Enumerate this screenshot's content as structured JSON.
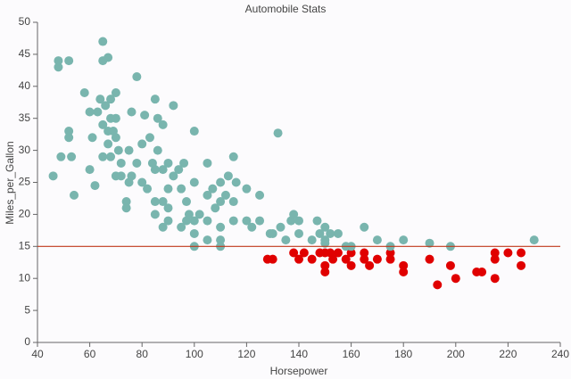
{
  "chart_data": {
    "type": "scatter",
    "title": "Automobile Stats",
    "x_label": "Horsepower",
    "y_label": "Miles_per_Gallon",
    "xlim": [
      40,
      240
    ],
    "xticks": [
      40,
      60,
      80,
      100,
      120,
      140,
      160,
      180,
      200,
      220,
      240
    ],
    "ylim": [
      0,
      50
    ],
    "yticks": [
      0,
      5,
      10,
      15,
      20,
      25,
      30,
      35,
      40,
      45,
      50
    ],
    "grid": false,
    "color": "#79b5ae",
    "below_color": "#e00000",
    "reference_line": {
      "value": 15,
      "color": "#c0391b"
    },
    "x": [
      128,
      130,
      138,
      140,
      142,
      145,
      148,
      150,
      150,
      150,
      152,
      153,
      155,
      158,
      160,
      160,
      165,
      165,
      167,
      170,
      175,
      175,
      180,
      180,
      190,
      193,
      198,
      200,
      208,
      210,
      215,
      215,
      215,
      220,
      225,
      225,
      46,
      48,
      48,
      49,
      52,
      52,
      52,
      53,
      54,
      58,
      60,
      60,
      61,
      62,
      63,
      64,
      65,
      65,
      65,
      65,
      66,
      67,
      67,
      67,
      68,
      68,
      68,
      69,
      70,
      70,
      70,
      70,
      71,
      72,
      72,
      74,
      74,
      75,
      75,
      76,
      76,
      78,
      78,
      80,
      80,
      81,
      82,
      83,
      84,
      85,
      85,
      85,
      85,
      86,
      86,
      88,
      88,
      88,
      88,
      90,
      90,
      90,
      90,
      92,
      92,
      94,
      95,
      95,
      96,
      97,
      97,
      98,
      100,
      100,
      100,
      100,
      100,
      102,
      105,
      105,
      105,
      105,
      107,
      108,
      110,
      110,
      110,
      110,
      110,
      112,
      113,
      115,
      115,
      115,
      116,
      120,
      120,
      122,
      125,
      125,
      129,
      130,
      132,
      133,
      135,
      137,
      138,
      140,
      140,
      145,
      147,
      148,
      150,
      150,
      150,
      152,
      155,
      158,
      160,
      165,
      170,
      175,
      180,
      190,
      198,
      230
    ],
    "values": [
      13,
      13,
      14,
      13,
      14,
      13,
      14,
      14,
      11,
      12,
      14,
      13,
      14,
      13,
      14,
      12,
      14,
      13,
      12,
      13,
      14,
      13,
      12,
      11,
      13,
      9,
      12,
      10,
      11,
      11,
      14,
      13,
      10,
      14,
      14,
      12,
      26,
      43,
      44,
      29,
      44,
      33,
      32,
      29,
      23,
      39,
      36,
      27,
      32,
      24.5,
      36,
      38,
      47,
      44,
      34,
      29,
      37,
      44.5,
      31,
      33,
      35,
      29,
      38,
      33,
      32,
      35,
      39,
      26,
      30,
      26,
      28,
      22,
      21,
      30,
      25,
      36,
      26,
      41.5,
      28,
      25,
      31,
      35.5,
      24,
      32,
      28,
      38,
      27,
      22,
      20,
      35,
      30,
      34,
      27,
      22,
      18,
      28,
      24,
      21,
      19,
      37,
      26,
      27,
      24,
      18,
      28,
      22,
      19,
      20,
      33,
      25,
      19,
      17,
      15,
      20,
      28,
      23,
      19,
      16,
      24,
      21,
      25,
      22,
      18,
      16,
      15,
      23,
      26,
      29,
      22,
      19,
      25,
      24,
      19,
      18,
      23,
      19,
      17,
      17,
      32.7,
      18,
      16,
      19,
      20,
      19,
      17,
      16,
      19,
      17,
      18,
      16,
      15.5,
      17,
      17,
      15,
      15,
      18,
      16,
      15,
      16,
      15.5,
      15,
      16
    ]
  }
}
